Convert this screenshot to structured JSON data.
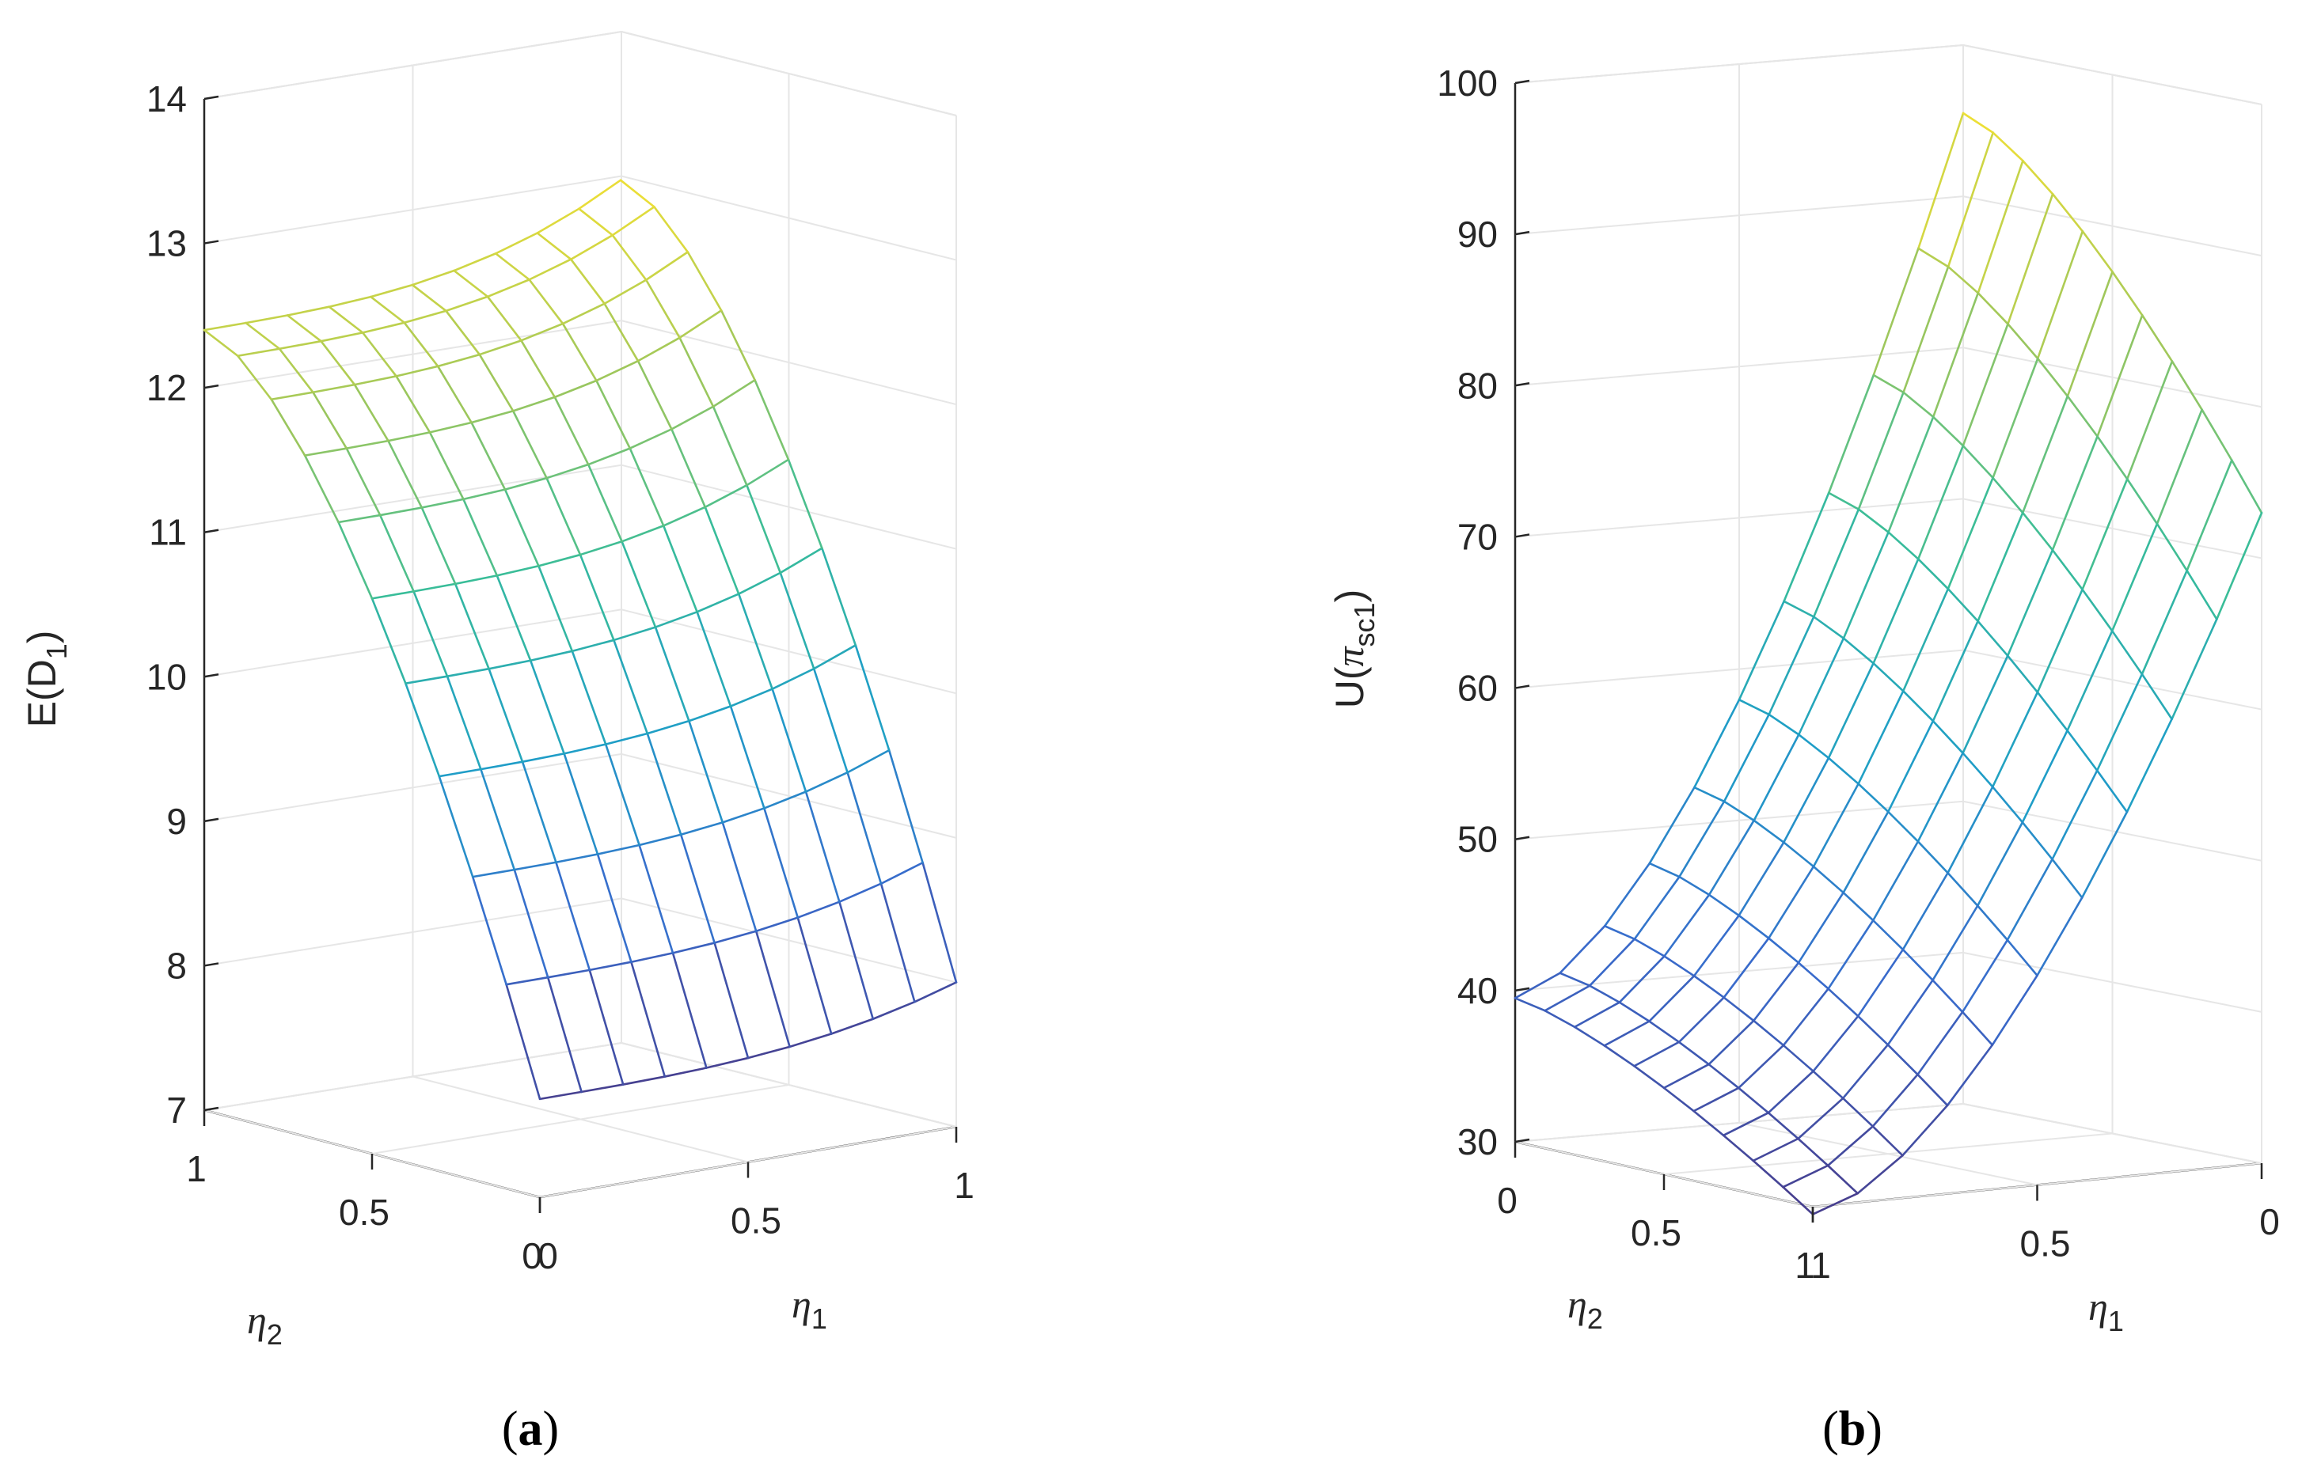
{
  "chart_data": [
    {
      "type": "surface",
      "caption_letter": "a",
      "zlabel": "E(D₁)",
      "zlabel_parts": {
        "main": "E(D",
        "sub": "1",
        "close": ")"
      },
      "xlabel_parts": {
        "greek": "η",
        "sub": "1"
      },
      "ylabel_parts": {
        "greek": "η",
        "sub": "2"
      },
      "x_ticks": [
        "0",
        "0.5",
        "1"
      ],
      "y_ticks": [
        "1",
        "0.5",
        "0"
      ],
      "z_ticks": [
        "7",
        "8",
        "9",
        "10",
        "11",
        "12",
        "13",
        "14"
      ],
      "zlim": [
        7,
        14
      ],
      "grid": true,
      "colormap": "parula",
      "grid_size": 11,
      "samples": {
        "eta1_0_eta2_0": 7.68,
        "eta1_1_eta2_0": 8.0,
        "eta1_1_eta2_1": 12.95,
        "eta1_0_eta2_1": 12.4
      }
    },
    {
      "type": "surface",
      "caption_letter": "b",
      "zlabel": "U(πsc1)",
      "zlabel_parts": {
        "main": "U(",
        "greek": "π",
        "sub": "sc1",
        "close": ")"
      },
      "xlabel_parts": {
        "greek": "η",
        "sub": "1"
      },
      "ylabel_parts": {
        "greek": "η",
        "sub": "2"
      },
      "x_ticks": [
        "1",
        "0.5",
        "0"
      ],
      "y_ticks": [
        "0",
        "0.5",
        "1"
      ],
      "z_ticks": [
        "30",
        "40",
        "50",
        "60",
        "70",
        "80",
        "90",
        "100"
      ],
      "zlim": [
        30,
        100
      ],
      "grid": true,
      "colormap": "parula",
      "grid_size": 11,
      "samples": {
        "eta1_1_eta2_0": 39.5,
        "eta1_1_eta2_1": 29.5,
        "eta1_0_eta2_1": 73.0,
        "eta1_0_eta2_0": 95.5
      }
    }
  ],
  "captions": [
    "a",
    "b"
  ]
}
